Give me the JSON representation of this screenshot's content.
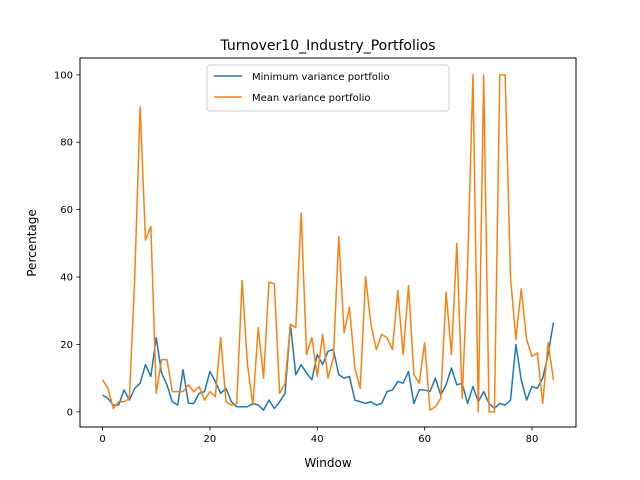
{
  "chart_data": {
    "type": "line",
    "title": "Turnover10_Industry_Portfolios",
    "xlabel": "Window",
    "ylabel": "Percentage",
    "xlim": [
      -4.2,
      88.2
    ],
    "ylim": [
      -4.5,
      105
    ],
    "xticks": [
      0,
      20,
      40,
      60,
      80
    ],
    "yticks": [
      0,
      20,
      40,
      60,
      80,
      100
    ],
    "grid": false,
    "legend_position": "top-center",
    "series": [
      {
        "name": "Minimum variance portfolio",
        "color": "#1f77b4",
        "values": [
          5,
          4,
          2,
          2,
          6.5,
          3.5,
          7,
          8.5,
          14,
          10.5,
          22,
          11.5,
          8,
          3,
          2,
          12.5,
          2.5,
          2.5,
          5.5,
          6,
          12,
          9,
          5.5,
          7,
          3,
          1.5,
          1.5,
          1.5,
          2.5,
          2,
          0.5,
          3.5,
          1,
          3,
          5.5,
          26,
          11,
          14,
          11.5,
          9.5,
          17,
          14,
          18,
          18.5,
          11,
          10,
          10.5,
          3.5,
          3,
          2.5,
          3,
          2,
          2.5,
          6,
          6.5,
          9,
          8.5,
          12,
          2.5,
          6.5,
          6.5,
          6,
          10,
          5,
          8,
          13,
          8,
          8.5,
          2.5,
          7.5,
          3,
          6,
          2.5,
          1,
          2.5,
          2,
          3.5,
          20,
          9.5,
          3.5,
          7.5,
          7,
          10,
          17,
          26.5
        ]
      },
      {
        "name": "Mean variance portfolio",
        "color": "#ff7f0e",
        "values": [
          9.5,
          7,
          1,
          3,
          3,
          4,
          40,
          90.5,
          51,
          55,
          5.5,
          15.5,
          15.5,
          6,
          6,
          6,
          8,
          6,
          7.5,
          3.5,
          6,
          4.5,
          22,
          3,
          2,
          2.5,
          39,
          14,
          2,
          25,
          10,
          38.5,
          38,
          5.5,
          8.5,
          26,
          25,
          59,
          17,
          22,
          10.5,
          23,
          10,
          16,
          52,
          23.5,
          31,
          13,
          7,
          40,
          26,
          18.5,
          23,
          22,
          18.5,
          36,
          17,
          37.5,
          11,
          8.5,
          20.5,
          0.5,
          1.5,
          4,
          35.5,
          17,
          50,
          4,
          43,
          100,
          0,
          100,
          0,
          0,
          100,
          100,
          40,
          21.5,
          36.5,
          21.5,
          16.5,
          17.5,
          2.5,
          20.5,
          9.5
        ]
      }
    ]
  }
}
